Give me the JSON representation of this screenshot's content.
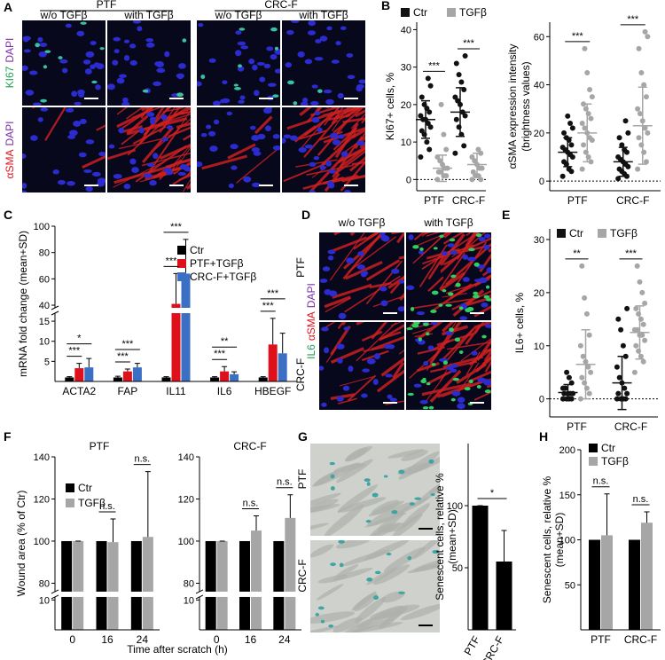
{
  "letters": [
    "A",
    "B",
    "C",
    "D",
    "E",
    "F",
    "G",
    "H"
  ],
  "panel_A": {
    "groups": [
      "PTF",
      "CRC-F"
    ],
    "conditions": [
      "w/o TGFβ",
      "with TGFβ",
      "w/o TGFβ",
      "with TGFβ"
    ],
    "rows": [
      [
        {
          "text": "KI67",
          "color": "#1f9e55"
        },
        {
          "text": "DAPI",
          "color": "#7a2fa8"
        }
      ],
      [
        {
          "text": "αSMA",
          "color": "#e0101a"
        },
        {
          "text": "DAPI",
          "color": "#7a2fa8"
        }
      ]
    ]
  },
  "panel_D": {
    "conditions": [
      "w/o TGFβ",
      "with TGFβ"
    ],
    "rows": [
      "PTF",
      "CRC-F"
    ],
    "stain": [
      {
        "text": "IL6",
        "color": "#1f9e55"
      },
      {
        "text": "αSMA",
        "color": "#e0101a"
      },
      {
        "text": "DAPI",
        "color": "#7a2fa8"
      }
    ]
  },
  "panel_G": {
    "rows": [
      "PTF",
      "CRC-F"
    ]
  },
  "chart_data": [
    {
      "type": "dot",
      "ylabel": "KI67+ cells, %",
      "categories": [
        "PTF",
        "CRC-F"
      ],
      "ylim": [
        -3,
        42
      ],
      "yticks": [
        0,
        10,
        20,
        30,
        40
      ],
      "zero_line": true,
      "series": [
        {
          "name": "Ctr",
          "color": "#111111",
          "points": [
            [
              6,
              8,
              10,
              12,
              13,
              14,
              15,
              16,
              16,
              17,
              18,
              19,
              20,
              22,
              25,
              27
            ],
            [
              7,
              9,
              12,
              14,
              16,
              17,
              18,
              20,
              21,
              22,
              24,
              26,
              28,
              31,
              33
            ]
          ],
          "values": [
            16,
            18
          ],
          "errors": [
            5,
            6.5
          ]
        },
        {
          "name": "TGFβ",
          "color": "#a6a6a6",
          "points": [
            [
              0,
              1,
              1,
              2,
              2,
              3,
              3,
              4,
              5,
              6,
              8,
              12,
              20
            ],
            [
              0,
              0,
              1,
              1,
              2,
              3,
              3,
              4,
              5,
              6,
              7,
              8
            ]
          ],
          "values": [
            3,
            4
          ],
          "errors": [
            3.5,
            3
          ]
        }
      ],
      "annotations": [
        {
          "label": "***",
          "between": [
            [
              0,
              0
            ],
            [
              0,
              1
            ]
          ]
        },
        {
          "label": "***",
          "between": [
            [
              1,
              0
            ],
            [
              1,
              1
            ]
          ]
        }
      ]
    },
    {
      "type": "dot",
      "ylabel": [
        "αSMA expression intensity",
        "(brightness values)"
      ],
      "categories": [
        "PTF",
        "CRC-F"
      ],
      "ylim": [
        -4,
        66
      ],
      "yticks": [
        0,
        20,
        40,
        60
      ],
      "zero_line": true,
      "series": [
        {
          "color": "#111111",
          "points": [
            [
              2,
              4,
              5,
              7,
              8,
              10,
              11,
              12,
              13,
              14,
              15,
              17,
              18,
              20,
              22,
              24,
              27
            ],
            [
              1,
              2,
              3,
              4,
              5,
              6,
              7,
              8,
              9,
              10,
              12,
              13,
              15,
              18,
              20,
              25
            ]
          ],
          "values": [
            12,
            8
          ],
          "errors": [
            6,
            6
          ]
        },
        {
          "color": "#a6a6a6",
          "points": [
            [
              5,
              8,
              10,
              12,
              15,
              17,
              18,
              20,
              22,
              24,
              26,
              28,
              30,
              32,
              35,
              38,
              45,
              55
            ],
            [
              5,
              8,
              12,
              15,
              18,
              20,
              22,
              25,
              28,
              30,
              35,
              40,
              45,
              55,
              60,
              62
            ]
          ],
          "values": [
            20,
            23
          ],
          "errors": [
            12,
            16
          ]
        }
      ],
      "annotations": [
        {
          "label": "***",
          "between": [
            [
              0,
              0
            ],
            [
              0,
              1
            ]
          ]
        },
        {
          "label": "***",
          "between": [
            [
              1,
              0
            ],
            [
              1,
              1
            ]
          ]
        }
      ]
    },
    {
      "type": "bar",
      "ylabel": "mRNA fold change (mean+SD)",
      "categories": [
        "ACTA2",
        "FAP",
        "IL11",
        "IL6",
        "HBEGF"
      ],
      "ylim": [
        0,
        100
      ],
      "ybreak": [
        17,
        38
      ],
      "yticks": [
        5,
        10,
        15,
        40,
        60,
        80,
        100
      ],
      "series": [
        {
          "name": "Ctr",
          "color": "#000000",
          "values": [
            1,
            1,
            1,
            1,
            1
          ],
          "errors": [
            0.2,
            0.3,
            0.2,
            0.2,
            0.2
          ]
        },
        {
          "name": "PTF+TGFβ",
          "color": "#e0101a",
          "values": [
            3.3,
            2.5,
            41,
            2.5,
            9.2
          ],
          "errors": [
            1.2,
            0.6,
            23,
            1.2,
            6.5
          ]
        },
        {
          "name": "CRC-F+TGFβ",
          "color": "#3a6fc4",
          "values": [
            3.5,
            3.5,
            64,
            1.8,
            7
          ],
          "errors": [
            2.2,
            1,
            26,
            0.6,
            5
          ]
        }
      ],
      "annotations": [
        {
          "label": "***",
          "between": [
            [
              0,
              0
            ],
            [
              0,
              1
            ]
          ]
        },
        {
          "label": "*",
          "between": [
            [
              0,
              0
            ],
            [
              0,
              2
            ]
          ]
        },
        {
          "label": "***",
          "between": [
            [
              1,
              0
            ],
            [
              1,
              1
            ]
          ]
        },
        {
          "label": "***",
          "between": [
            [
              1,
              0
            ],
            [
              1,
              2
            ]
          ]
        },
        {
          "label": "***",
          "between": [
            [
              2,
              0
            ],
            [
              2,
              1
            ]
          ]
        },
        {
          "label": "***",
          "between": [
            [
              2,
              0
            ],
            [
              2,
              2
            ]
          ]
        },
        {
          "label": "***",
          "between": [
            [
              3,
              0
            ],
            [
              3,
              1
            ]
          ]
        },
        {
          "label": "**",
          "between": [
            [
              3,
              0
            ],
            [
              3,
              2
            ]
          ]
        },
        {
          "label": "***",
          "between": [
            [
              4,
              0
            ],
            [
              4,
              1
            ]
          ]
        },
        {
          "label": "***",
          "between": [
            [
              4,
              0
            ],
            [
              4,
              2
            ]
          ]
        }
      ]
    },
    {
      "type": "dot",
      "ylabel": "IL6+ cells, %",
      "categories": [
        "PTF",
        "CRC-F"
      ],
      "ylim": [
        -3.4,
        32
      ],
      "yticks": [
        0,
        10,
        20,
        30
      ],
      "zero_line": true,
      "series": [
        {
          "name": "Ctr",
          "color": "#111111",
          "points": [
            [
              0,
              0,
              0,
              0,
              1,
              1,
              1,
              1,
              2,
              2,
              3,
              4,
              5
            ],
            [
              0,
              0,
              0,
              0,
              1,
              1,
              2,
              3,
              4,
              6,
              8,
              10,
              13,
              15,
              17
            ]
          ],
          "values": [
            1.2,
            3
          ],
          "errors": [
            1.5,
            5
          ]
        },
        {
          "name": "TGFβ",
          "color": "#a6a6a6",
          "points": [
            [
              0,
              1,
              2,
              3,
              4,
              5,
              6,
              7,
              8,
              10,
              12,
              16,
              19,
              25
            ],
            [
              5,
              7,
              8,
              9,
              10,
              11,
              12,
              12,
              13,
              13,
              14,
              15,
              16,
              17,
              18,
              20,
              22,
              25
            ]
          ],
          "values": [
            6.5,
            12.5
          ],
          "errors": [
            6.5,
            5
          ]
        }
      ],
      "annotations": [
        {
          "label": "**",
          "between": [
            [
              0,
              0
            ],
            [
              0,
              1
            ]
          ]
        },
        {
          "label": "***",
          "between": [
            [
              1,
              0
            ],
            [
              1,
              1
            ]
          ]
        }
      ]
    },
    {
      "type": "bar",
      "title": "PTF",
      "ylabel": "Wound area (% of Ctr)",
      "xlabel": "Time after scratch (h)",
      "categories": [
        "0",
        "16",
        "24"
      ],
      "ylim": [
        0,
        140
      ],
      "ybreak": [
        11,
        76
      ],
      "yticks": [
        10,
        80,
        100,
        120,
        140
      ],
      "series": [
        {
          "name": "Ctr",
          "color": "#000000",
          "values": [
            100,
            100,
            100
          ]
        },
        {
          "name": "TGFβ",
          "color": "#a6a6a6",
          "values": [
            100,
            99.5,
            102
          ],
          "errors": [
            0,
            11,
            31
          ]
        }
      ],
      "annotations": [
        {
          "label": "n.s.",
          "between": [
            [
              1,
              0
            ],
            [
              1,
              1
            ]
          ]
        },
        {
          "label": "n.s.",
          "between": [
            [
              2,
              0
            ],
            [
              2,
              1
            ]
          ]
        }
      ]
    },
    {
      "type": "bar",
      "title": "CRC-F",
      "categories": [
        "0",
        "16",
        "24"
      ],
      "ylim": [
        0,
        140
      ],
      "ybreak": [
        11,
        76
      ],
      "yticks": [
        10,
        80,
        100,
        120,
        140
      ],
      "series": [
        {
          "color": "#000000",
          "values": [
            100,
            100,
            100
          ]
        },
        {
          "color": "#a6a6a6",
          "values": [
            100,
            105,
            111
          ],
          "errors": [
            0,
            7,
            11
          ]
        }
      ],
      "annotations": [
        {
          "label": "n.s.",
          "between": [
            [
              1,
              0
            ],
            [
              1,
              1
            ]
          ]
        },
        {
          "label": "n.s.",
          "between": [
            [
              2,
              0
            ],
            [
              2,
              1
            ]
          ]
        }
      ]
    },
    {
      "type": "bar",
      "ylabel": [
        "Senescent cells, relative %",
        "(mean+SD)"
      ],
      "categories": [
        "PTF",
        "CRC-F"
      ],
      "ylim": [
        0,
        150
      ],
      "yticks": [
        50,
        100
      ],
      "series": [
        {
          "color": "#000000",
          "values": [
            100,
            55
          ],
          "errors": [
            0,
            25
          ]
        }
      ],
      "annotations": [
        {
          "label": "*",
          "between": [
            [
              0,
              0
            ],
            [
              1,
              0
            ]
          ]
        }
      ]
    },
    {
      "type": "bar",
      "ylabel": [
        "Senescent cells, relative %",
        "(mean+SD)"
      ],
      "categories": [
        "PTF",
        "CRC-F"
      ],
      "ylim": [
        0,
        200
      ],
      "yticks": [
        50,
        100,
        150,
        200
      ],
      "series": [
        {
          "name": "Ctr",
          "color": "#000000",
          "values": [
            100,
            100
          ]
        },
        {
          "name": "TGFβ",
          "color": "#a6a6a6",
          "values": [
            105,
            119
          ],
          "errors": [
            46,
            12
          ]
        }
      ],
      "annotations": [
        {
          "label": "n.s.",
          "between": [
            [
              0,
              0
            ],
            [
              0,
              1
            ]
          ]
        },
        {
          "label": "n.s.",
          "between": [
            [
              1,
              0
            ],
            [
              1,
              1
            ]
          ]
        }
      ]
    }
  ]
}
